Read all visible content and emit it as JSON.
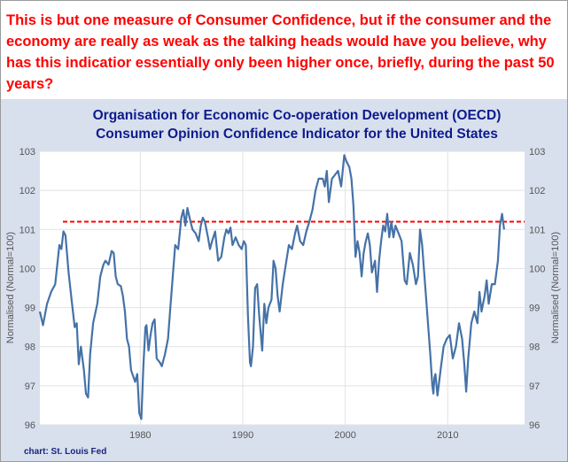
{
  "annotation": {
    "text": "This is but one measure of Consumer Confidence, but if the consumer and the economy are really as weak as the talking heads would have you believe, why has this indicatior essentially only been higher once, briefly, during the past 50 years?",
    "color": "#ff0000"
  },
  "credit": "chart: St. Louis Fed",
  "colors": {
    "line": "#4572a7",
    "reference_line": "#ff0000",
    "title": "#0d1b8c",
    "background": "#d8e0ee",
    "plot": "#ffffff"
  },
  "chart_data": {
    "type": "line",
    "title": "Organisation for Economic Co-operation Development (OECD)",
    "subtitle": "Consumer Opinion Confidence Indicator for the United States",
    "xlabel": "",
    "ylabel": "Normalised (Normal=100)",
    "ylabel_right": "Normalised (Normal=100)",
    "x_ticks": [
      "1980",
      "1990",
      "2000",
      "2010"
    ],
    "x_tick_values": [
      1980,
      1990,
      2000,
      2010
    ],
    "y_ticks": [
      "96",
      "97",
      "98",
      "99",
      "100",
      "101",
      "102",
      "103"
    ],
    "y_tick_values": [
      96,
      97,
      98,
      99,
      100,
      101,
      102,
      103
    ],
    "xlim": [
      1970.2,
      2017.5
    ],
    "ylim": [
      96,
      103
    ],
    "grid": true,
    "dual_axis": true,
    "reference_line": {
      "value": 101.2,
      "style": "dashed"
    },
    "series": [
      {
        "values": [
          [
            1970.2,
            98.9
          ],
          [
            1970.5,
            98.55
          ],
          [
            1970.9,
            99.1
          ],
          [
            1971.3,
            99.4
          ],
          [
            1971.7,
            99.6
          ],
          [
            1972.1,
            100.6
          ],
          [
            1972.3,
            100.5
          ],
          [
            1972.5,
            100.95
          ],
          [
            1972.7,
            100.85
          ],
          [
            1973.0,
            99.9
          ],
          [
            1973.3,
            99.2
          ],
          [
            1973.6,
            98.5
          ],
          [
            1973.8,
            98.6
          ],
          [
            1974.0,
            97.55
          ],
          [
            1974.2,
            98.0
          ],
          [
            1974.5,
            97.4
          ],
          [
            1974.7,
            96.8
          ],
          [
            1974.9,
            96.7
          ],
          [
            1975.1,
            97.8
          ],
          [
            1975.4,
            98.6
          ],
          [
            1975.8,
            99.1
          ],
          [
            1976.1,
            99.8
          ],
          [
            1976.4,
            100.1
          ],
          [
            1976.6,
            100.2
          ],
          [
            1976.9,
            100.1
          ],
          [
            1977.2,
            100.45
          ],
          [
            1977.4,
            100.4
          ],
          [
            1977.6,
            99.8
          ],
          [
            1977.8,
            99.6
          ],
          [
            1978.1,
            99.55
          ],
          [
            1978.3,
            99.3
          ],
          [
            1978.5,
            98.9
          ],
          [
            1978.7,
            98.2
          ],
          [
            1978.9,
            98.0
          ],
          [
            1979.1,
            97.4
          ],
          [
            1979.3,
            97.25
          ],
          [
            1979.5,
            97.1
          ],
          [
            1979.7,
            97.3
          ],
          [
            1979.9,
            96.3
          ],
          [
            1980.1,
            96.15
          ],
          [
            1980.3,
            97.5
          ],
          [
            1980.5,
            98.5
          ],
          [
            1980.6,
            98.55
          ],
          [
            1980.8,
            97.9
          ],
          [
            1981.0,
            98.3
          ],
          [
            1981.2,
            98.6
          ],
          [
            1981.4,
            98.7
          ],
          [
            1981.6,
            97.7
          ],
          [
            1981.9,
            97.6
          ],
          [
            1982.1,
            97.5
          ],
          [
            1982.4,
            97.8
          ],
          [
            1982.7,
            98.2
          ],
          [
            1982.9,
            98.9
          ],
          [
            1983.2,
            99.9
          ],
          [
            1983.4,
            100.6
          ],
          [
            1983.7,
            100.5
          ],
          [
            1984.0,
            101.3
          ],
          [
            1984.2,
            101.5
          ],
          [
            1984.4,
            101.1
          ],
          [
            1984.6,
            101.55
          ],
          [
            1984.9,
            101.2
          ],
          [
            1985.1,
            101.0
          ],
          [
            1985.4,
            100.9
          ],
          [
            1985.7,
            100.7
          ],
          [
            1985.9,
            101.1
          ],
          [
            1986.1,
            101.3
          ],
          [
            1986.3,
            101.2
          ],
          [
            1986.6,
            100.8
          ],
          [
            1986.8,
            100.5
          ],
          [
            1987.0,
            100.7
          ],
          [
            1987.3,
            100.95
          ],
          [
            1987.6,
            100.2
          ],
          [
            1987.9,
            100.3
          ],
          [
            1988.2,
            100.8
          ],
          [
            1988.4,
            101.0
          ],
          [
            1988.6,
            100.9
          ],
          [
            1988.8,
            101.05
          ],
          [
            1989.0,
            100.6
          ],
          [
            1989.3,
            100.8
          ],
          [
            1989.6,
            100.6
          ],
          [
            1989.9,
            100.5
          ],
          [
            1990.1,
            100.7
          ],
          [
            1990.3,
            100.6
          ],
          [
            1990.5,
            98.8
          ],
          [
            1990.7,
            97.6
          ],
          [
            1990.8,
            97.5
          ],
          [
            1991.0,
            98.0
          ],
          [
            1991.2,
            99.5
          ],
          [
            1991.4,
            99.6
          ],
          [
            1991.6,
            98.8
          ],
          [
            1991.9,
            97.9
          ],
          [
            1992.1,
            99.1
          ],
          [
            1992.3,
            98.6
          ],
          [
            1992.5,
            99.0
          ],
          [
            1992.8,
            99.2
          ],
          [
            1993.0,
            100.2
          ],
          [
            1993.2,
            100.0
          ],
          [
            1993.4,
            99.3
          ],
          [
            1993.6,
            98.9
          ],
          [
            1993.9,
            99.6
          ],
          [
            1994.2,
            100.1
          ],
          [
            1994.5,
            100.6
          ],
          [
            1994.8,
            100.5
          ],
          [
            1995.1,
            100.9
          ],
          [
            1995.3,
            101.1
          ],
          [
            1995.6,
            100.7
          ],
          [
            1995.9,
            100.6
          ],
          [
            1996.2,
            100.95
          ],
          [
            1996.5,
            101.2
          ],
          [
            1996.8,
            101.5
          ],
          [
            1997.1,
            102.0
          ],
          [
            1997.4,
            102.3
          ],
          [
            1997.8,
            102.3
          ],
          [
            1998.0,
            102.1
          ],
          [
            1998.2,
            102.5
          ],
          [
            1998.4,
            101.7
          ],
          [
            1998.7,
            102.3
          ],
          [
            1999.0,
            102.4
          ],
          [
            1999.3,
            102.5
          ],
          [
            1999.6,
            102.1
          ],
          [
            1999.9,
            102.9
          ],
          [
            2000.1,
            102.75
          ],
          [
            2000.4,
            102.6
          ],
          [
            2000.6,
            102.3
          ],
          [
            2000.8,
            101.6
          ],
          [
            2001.0,
            100.3
          ],
          [
            2001.2,
            100.7
          ],
          [
            2001.4,
            100.4
          ],
          [
            2001.6,
            99.8
          ],
          [
            2001.8,
            100.4
          ],
          [
            2002.0,
            100.7
          ],
          [
            2002.2,
            100.9
          ],
          [
            2002.4,
            100.6
          ],
          [
            2002.6,
            99.9
          ],
          [
            2002.9,
            100.2
          ],
          [
            2003.1,
            99.4
          ],
          [
            2003.3,
            100.2
          ],
          [
            2003.5,
            100.7
          ],
          [
            2003.7,
            101.1
          ],
          [
            2003.9,
            100.95
          ],
          [
            2004.1,
            101.4
          ],
          [
            2004.3,
            100.8
          ],
          [
            2004.5,
            101.2
          ],
          [
            2004.7,
            100.8
          ],
          [
            2004.9,
            101.1
          ],
          [
            2005.2,
            100.9
          ],
          [
            2005.5,
            100.7
          ],
          [
            2005.8,
            99.7
          ],
          [
            2006.0,
            99.6
          ],
          [
            2006.3,
            100.4
          ],
          [
            2006.6,
            100.1
          ],
          [
            2006.9,
            99.6
          ],
          [
            2007.1,
            99.8
          ],
          [
            2007.3,
            101.0
          ],
          [
            2007.5,
            100.6
          ],
          [
            2007.7,
            99.9
          ],
          [
            2007.9,
            99.2
          ],
          [
            2008.1,
            98.5
          ],
          [
            2008.3,
            97.8
          ],
          [
            2008.5,
            97.0
          ],
          [
            2008.6,
            96.8
          ],
          [
            2008.7,
            97.2
          ],
          [
            2008.8,
            97.3
          ],
          [
            2009.0,
            96.75
          ],
          [
            2009.3,
            97.4
          ],
          [
            2009.6,
            98.0
          ],
          [
            2009.9,
            98.2
          ],
          [
            2010.2,
            98.3
          ],
          [
            2010.5,
            97.7
          ],
          [
            2010.8,
            98.0
          ],
          [
            2011.1,
            98.6
          ],
          [
            2011.4,
            98.2
          ],
          [
            2011.6,
            97.6
          ],
          [
            2011.8,
            96.85
          ],
          [
            2012.0,
            97.7
          ],
          [
            2012.3,
            98.6
          ],
          [
            2012.6,
            98.9
          ],
          [
            2012.9,
            98.6
          ],
          [
            2013.1,
            99.4
          ],
          [
            2013.3,
            98.9
          ],
          [
            2013.6,
            99.3
          ],
          [
            2013.8,
            99.7
          ],
          [
            2014.0,
            99.1
          ],
          [
            2014.3,
            99.6
          ],
          [
            2014.6,
            99.6
          ],
          [
            2014.9,
            100.2
          ],
          [
            2015.1,
            101.1
          ],
          [
            2015.3,
            101.4
          ],
          [
            2015.5,
            101.0
          ]
        ]
      }
    ]
  }
}
